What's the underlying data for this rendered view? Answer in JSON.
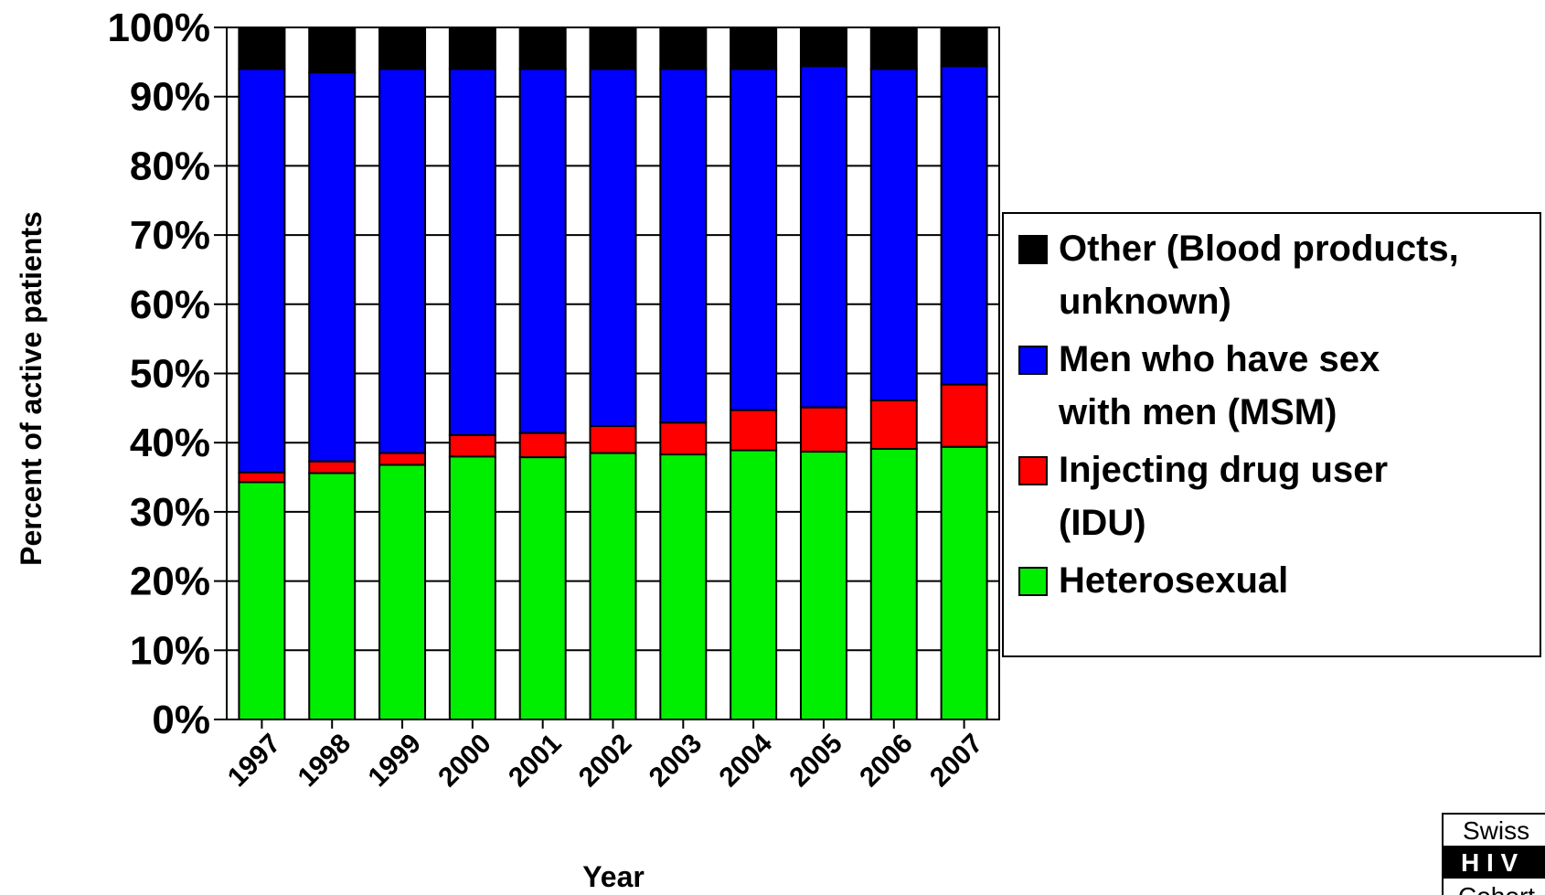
{
  "chart_data": {
    "type": "bar",
    "stacked": true,
    "percent_axis": true,
    "categories": [
      "1997",
      "1998",
      "1999",
      "2000",
      "2001",
      "2002",
      "2003",
      "2004",
      "2005",
      "2006",
      "2007"
    ],
    "series": [
      {
        "name": "Heterosexual",
        "color": "#00ee00",
        "values": [
          34.3,
          35.6,
          36.8,
          38.0,
          37.9,
          38.5,
          38.3,
          38.9,
          38.7,
          39.1,
          39.4
        ]
      },
      {
        "name": "Injecting drug user (IDU)",
        "color": "#ff0000",
        "values": [
          1.4,
          1.7,
          1.7,
          3.1,
          3.5,
          3.9,
          4.6,
          5.8,
          6.4,
          7.0,
          9.0
        ]
      },
      {
        "name": "Men who have sex with men (MSM)",
        "color": "#0000ff",
        "values": [
          58.3,
          56.2,
          55.5,
          52.9,
          52.6,
          51.6,
          51.1,
          49.3,
          49.3,
          47.9,
          46.0
        ]
      },
      {
        "name": "Other (Blood products, unknown)",
        "color": "#000000",
        "values": [
          6.0,
          6.5,
          6.0,
          6.0,
          6.0,
          6.0,
          6.0,
          6.0,
          5.6,
          6.0,
          5.6
        ]
      }
    ],
    "y_ticks": [
      "0%",
      "10%",
      "20%",
      "30%",
      "40%",
      "50%",
      "60%",
      "70%",
      "80%",
      "90%",
      "100%"
    ],
    "ylim": [
      0,
      100
    ],
    "xlabel": "Year",
    "ylabel": "Percent of active patients",
    "grid": "horizontal",
    "legend_position": "right",
    "legend": [
      {
        "series": "Other (Blood products, unknown)",
        "lines": [
          "Other (Blood products,",
          "unknown)"
        ],
        "color": "#000000"
      },
      {
        "series": "Men who have sex with men (MSM)",
        "lines": [
          "Men who have sex",
          "with men (MSM)"
        ],
        "color": "#0000ff"
      },
      {
        "series": "Injecting drug user (IDU)",
        "lines": [
          "Injecting drug user",
          "(IDU)"
        ],
        "color": "#ff0000"
      },
      {
        "series": "Heterosexual",
        "lines": [
          "Heterosexual"
        ],
        "color": "#00ee00"
      }
    ]
  },
  "logo": {
    "line1": "Swiss",
    "line2": "H I V",
    "line3": "Cohort"
  }
}
